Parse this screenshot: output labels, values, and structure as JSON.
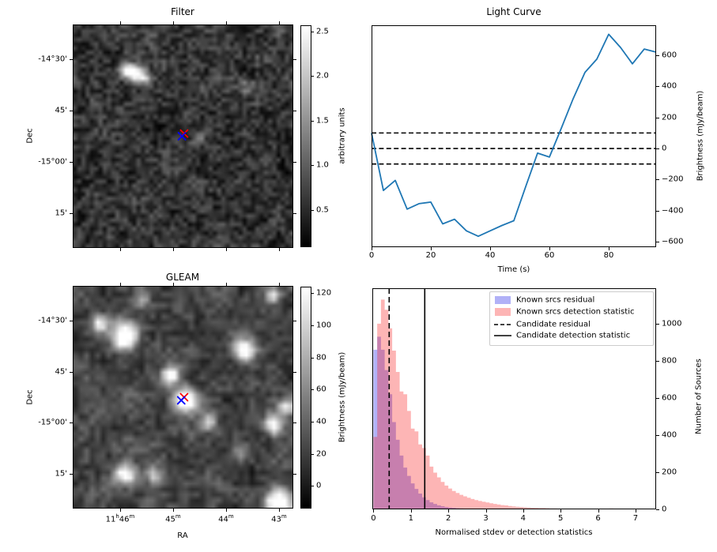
{
  "figure": {
    "background": "#ffffff"
  },
  "chart_data": [
    {
      "id": "filter",
      "type": "heatmap",
      "title": "Filter",
      "xlabel": "",
      "ylabel": "Dec",
      "xticks": {
        "fractions": [
          0.215,
          0.455,
          0.695,
          0.935
        ],
        "labels": [
          "",
          "",
          "",
          ""
        ]
      },
      "yticks": {
        "fractions": [
          0.155,
          0.385,
          0.615,
          0.845
        ],
        "labels": [
          "-14°30'",
          "45'",
          "-15°00'",
          "15'"
        ]
      },
      "colorbar": {
        "label": "arbitrary units",
        "ticks": [
          0.5,
          1.0,
          1.5,
          2.0,
          2.5
        ],
        "vmin": 0.08,
        "vmax": 2.57
      },
      "image_style": {
        "cmap": "gray-dark-noise",
        "seed": 7,
        "base": 0.42,
        "cells": 52,
        "speckle": 0.3
      },
      "sources": [
        {
          "x": 0.235,
          "y": 0.195,
          "a": 0.9,
          "r": 1.2
        },
        {
          "x": 0.275,
          "y": 0.21,
          "a": 0.75,
          "r": 1.3
        },
        {
          "x": 0.315,
          "y": 0.235,
          "a": 0.5,
          "r": 1.2
        },
        {
          "x": 0.78,
          "y": 0.27,
          "a": 0.32,
          "r": 1.3
        },
        {
          "x": 0.56,
          "y": 0.51,
          "a": 0.25,
          "r": 1.0
        }
      ],
      "markers": [
        {
          "shape": "x",
          "color": "#ff0000",
          "x": 0.505,
          "y": 0.488
        },
        {
          "shape": "x",
          "color": "#0000ff",
          "x": 0.495,
          "y": 0.5
        }
      ]
    },
    {
      "id": "light_curve",
      "type": "line",
      "title": "Light Curve",
      "xlabel": "Time (s)",
      "ylabel": "Brightness (mJy/beam)",
      "x": [
        0,
        4,
        8,
        12,
        16,
        20,
        24,
        28,
        32,
        36,
        40,
        44,
        48,
        52,
        56,
        60,
        64,
        68,
        72,
        76,
        80,
        84,
        88,
        92,
        96
      ],
      "y": [
        100,
        -270,
        -205,
        -390,
        -355,
        -345,
        -485,
        -455,
        -530,
        -565,
        -530,
        -495,
        -465,
        -245,
        -30,
        -55,
        130,
        320,
        490,
        575,
        735,
        650,
        545,
        640,
        620
      ],
      "line_color": "#1f77b4",
      "hlines": {
        "values": [
          100,
          0,
          -100
        ],
        "style": "dashed",
        "color": "#000000"
      },
      "xticks": [
        0,
        20,
        40,
        60,
        80
      ],
      "yticks": [
        -600,
        -400,
        -200,
        0,
        200,
        400,
        600
      ],
      "xlim": [
        0,
        96
      ],
      "ylim": [
        -635,
        793
      ],
      "grid": false
    },
    {
      "id": "gleam",
      "type": "heatmap",
      "title": "GLEAM",
      "xlabel": "RA",
      "ylabel": "Dec",
      "xticks": {
        "fractions": [
          0.215,
          0.455,
          0.695,
          0.935
        ],
        "labels": [
          "11h46m",
          "45m",
          "44m",
          "43m"
        ]
      },
      "yticks": {
        "fractions": [
          0.155,
          0.385,
          0.615,
          0.845
        ],
        "labels": [
          "-14°30'",
          "45'",
          "-15°00'",
          "15'"
        ]
      },
      "colorbar": {
        "label": "Brightness (mJy/beam)",
        "ticks": [
          0,
          20,
          40,
          60,
          80,
          100,
          120
        ],
        "vmin": -14,
        "vmax": 124
      },
      "image_style": {
        "cmap": "gray-smooth-noise",
        "seed": 11,
        "base": 0.55,
        "cells": 40,
        "speckle": 0.22
      },
      "sources": [
        {
          "x": 0.11,
          "y": 0.155,
          "a": 0.75,
          "r": 1.0
        },
        {
          "x": 0.225,
          "y": 0.215,
          "a": 1.3,
          "r": 1.6
        },
        {
          "x": 0.3,
          "y": 0.05,
          "a": 0.5,
          "r": 1.0
        },
        {
          "x": 0.765,
          "y": 0.275,
          "a": 1.1,
          "r": 1.3
        },
        {
          "x": 0.43,
          "y": 0.385,
          "a": 0.85,
          "r": 1.1
        },
        {
          "x": 0.5,
          "y": 0.5,
          "a": 1.3,
          "r": 1.4
        },
        {
          "x": 0.6,
          "y": 0.6,
          "a": 0.55,
          "r": 1.0
        },
        {
          "x": 0.955,
          "y": 0.53,
          "a": 0.7,
          "r": 1.0
        },
        {
          "x": 0.9,
          "y": 0.615,
          "a": 0.95,
          "r": 1.1
        },
        {
          "x": 0.225,
          "y": 0.83,
          "a": 1.0,
          "r": 1.2
        },
        {
          "x": 0.36,
          "y": 0.835,
          "a": 0.45,
          "r": 1.0
        },
        {
          "x": 0.92,
          "y": 0.965,
          "a": 1.3,
          "r": 1.6
        },
        {
          "x": 0.89,
          "y": 0.03,
          "a": 0.6,
          "r": 1.0
        },
        {
          "x": 0.74,
          "y": 0.72,
          "a": 0.4,
          "r": 1.0
        }
      ],
      "markers": [
        {
          "shape": "x",
          "color": "#ff0000",
          "x": 0.505,
          "y": 0.5
        },
        {
          "shape": "x",
          "color": "#0000ff",
          "x": 0.492,
          "y": 0.514
        }
      ]
    },
    {
      "id": "histogram",
      "type": "bar",
      "title": "",
      "xlabel": "Normalised stdev or detection statistics",
      "ylabel": "Number of Sources",
      "bin_width": 0.1,
      "series": [
        {
          "name": "Known srcs residual",
          "color": "rgba(25,25,230,0.34)",
          "legend_color": "#b1b1f7",
          "bin_start": 0.0,
          "counts": [
            860,
            930,
            860,
            750,
            620,
            470,
            375,
            290,
            225,
            180,
            140,
            110,
            85,
            65,
            50,
            38,
            29,
            22,
            17,
            13,
            10,
            8,
            6,
            5,
            4,
            3
          ]
        },
        {
          "name": "Known srcs detection statistic",
          "color": "rgba(250,15,15,0.31)",
          "legend_color": "#fdb5b5",
          "bin_start": 0.0,
          "counts": [
            390,
            1000,
            1130,
            1075,
            975,
            855,
            740,
            635,
            620,
            530,
            435,
            420,
            350,
            330,
            290,
            230,
            198,
            172,
            148,
            128,
            112,
            99,
            88,
            78,
            70,
            63,
            56,
            50,
            45,
            41,
            37,
            33,
            29,
            26,
            23,
            21,
            18,
            16,
            14,
            13,
            11,
            10,
            9,
            8,
            7,
            7,
            6,
            5,
            5,
            4,
            4,
            4,
            3,
            3,
            3,
            2,
            2,
            2,
            2,
            1,
            1,
            2,
            3,
            5,
            2,
            1,
            1,
            1,
            1,
            1,
            2,
            4
          ]
        }
      ],
      "vlines": [
        {
          "name": "Candidate residual",
          "x": 0.42,
          "style": "dashed",
          "color": "#000000"
        },
        {
          "name": "Candidate detection statistic",
          "x": 1.37,
          "style": "solid",
          "color": "#000000"
        }
      ],
      "legend": [
        "Known srcs residual",
        "Known srcs detection statistic",
        "Candidate residual",
        "Candidate detection statistic"
      ],
      "legend_position": "upper right",
      "xticks": [
        0,
        1,
        2,
        3,
        4,
        5,
        6,
        7
      ],
      "yticks": [
        0,
        200,
        400,
        600,
        800,
        1000
      ],
      "xlim": [
        -0.03,
        7.55
      ],
      "ylim": [
        0,
        1191
      ],
      "grid": false
    }
  ]
}
